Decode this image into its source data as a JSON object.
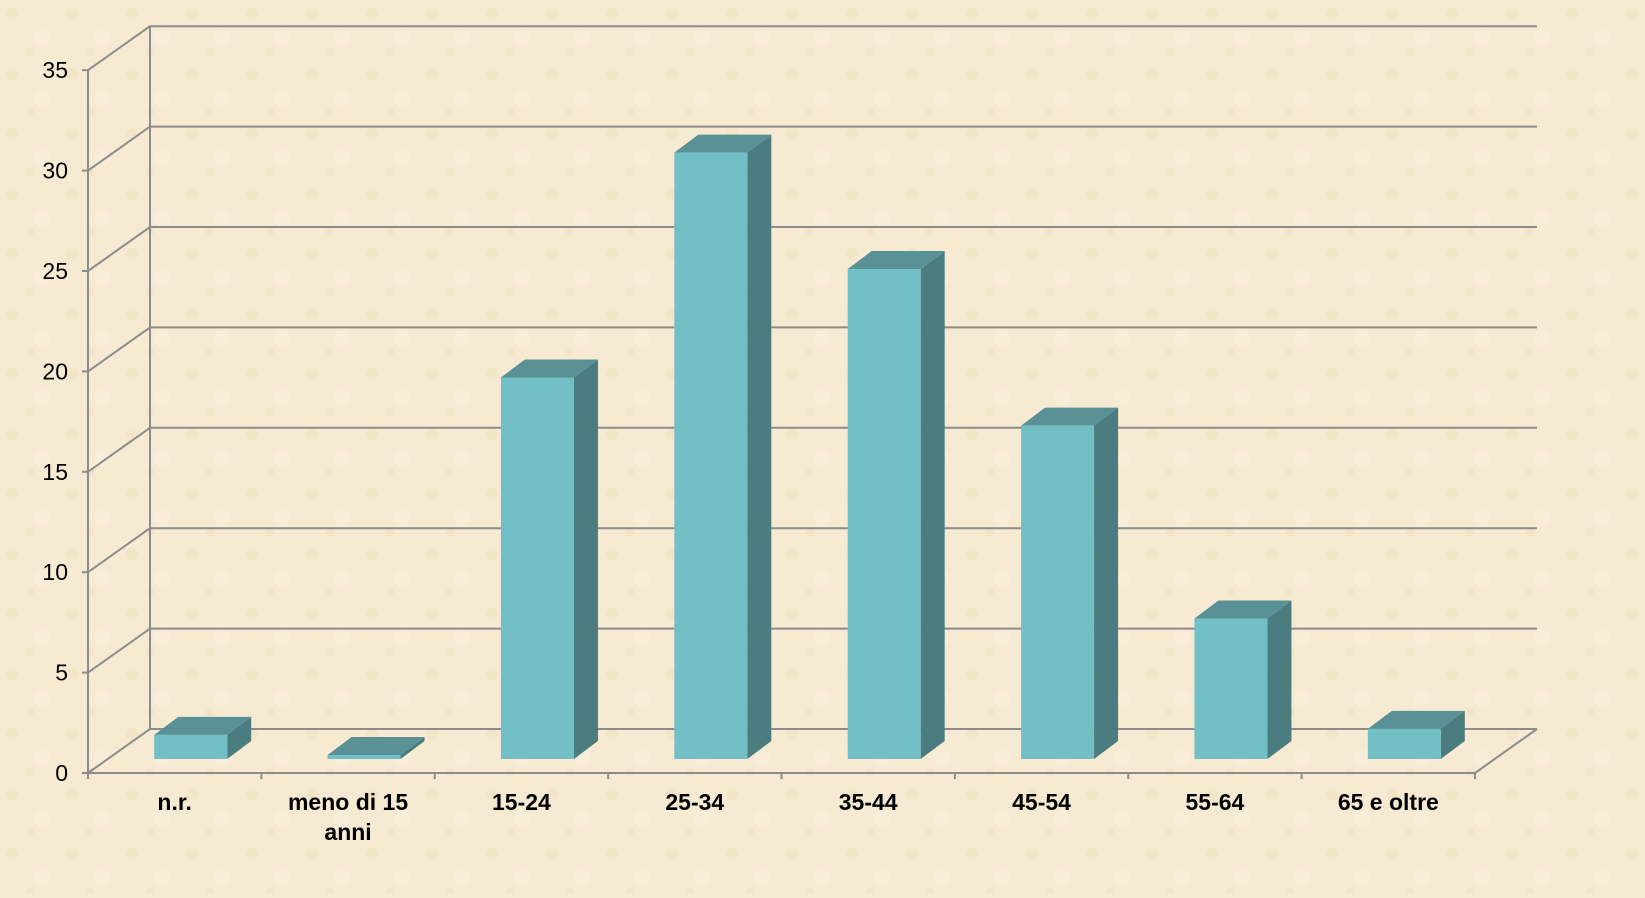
{
  "chart_data": {
    "type": "bar",
    "categories": [
      "n.r.",
      "meno di 15 anni",
      "15-24",
      "25-34",
      "35-44",
      "45-54",
      "55-64",
      "65 e oltre"
    ],
    "category_lines": [
      [
        "n.r."
      ],
      [
        "meno di 15",
        "anni"
      ],
      [
        "15-24"
      ],
      [
        "25-34"
      ],
      [
        "35-44"
      ],
      [
        "45-54"
      ],
      [
        "55-64"
      ],
      [
        "65 e oltre"
      ]
    ],
    "values": [
      1.2,
      0.2,
      19,
      30.2,
      24.4,
      16.6,
      7,
      1.5
    ],
    "title": "",
    "xlabel": "",
    "ylabel": "",
    "ylim": [
      0,
      35
    ],
    "yticks": [
      0,
      5,
      10,
      15,
      20,
      25,
      30,
      35
    ],
    "grid": true,
    "legend": "none",
    "colors": {
      "background": "#f6ead2",
      "bar_front": "#72bfc6",
      "bar_side": "#4a7c80",
      "bar_top": "#5a9196",
      "grid": "#8c8c8c"
    }
  }
}
